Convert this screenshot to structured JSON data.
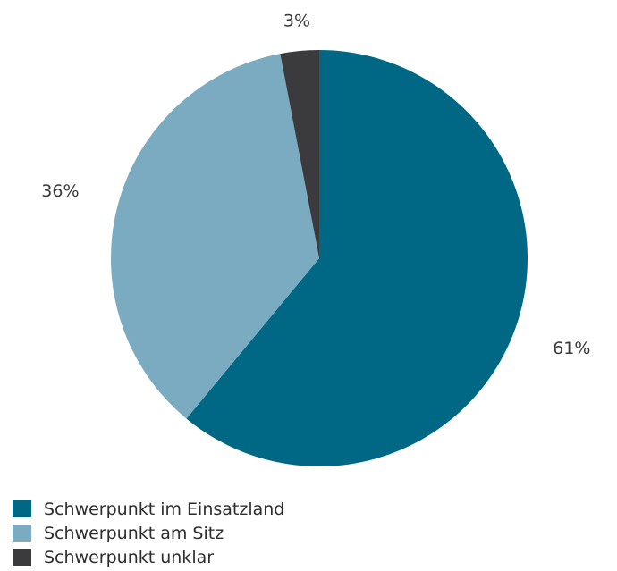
{
  "chart_data": {
    "type": "pie",
    "slices": [
      {
        "name": "Schwerpunkt im Einsatzland",
        "value": 61,
        "label": "61%",
        "color": "#006885"
      },
      {
        "name": "Schwerpunkt am Sitz",
        "value": 36,
        "label": "36%",
        "color": "#7aabc0"
      },
      {
        "name": "Schwerpunkt unklar",
        "value": 3,
        "label": "3%",
        "color": "#3b3b3e"
      }
    ],
    "legend_position": "bottom-left"
  }
}
